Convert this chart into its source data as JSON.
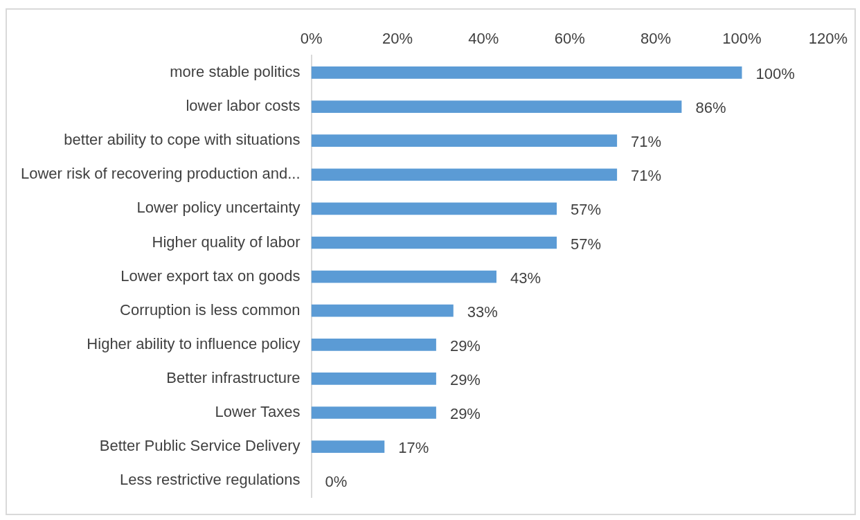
{
  "chart_data": {
    "type": "bar",
    "orientation": "horizontal",
    "categories": [
      "more stable politics",
      "lower labor costs",
      "better ability to cope with situations",
      "Lower risk of recovering production and...",
      "Lower policy uncertainty",
      "Higher quality of labor",
      "Lower export tax on goods",
      "Corruption is less common",
      "Higher ability to influence policy",
      "Better infrastructure",
      "Lower Taxes",
      "Better Public Service Delivery",
      "Less restrictive regulations"
    ],
    "values": [
      100,
      86,
      71,
      71,
      57,
      57,
      43,
      33,
      29,
      29,
      29,
      17,
      0
    ],
    "value_labels": [
      "100%",
      "86%",
      "71%",
      "71%",
      "57%",
      "57%",
      "43%",
      "33%",
      "29%",
      "29%",
      "29%",
      "17%",
      "0%"
    ],
    "color": "#5b9bd5",
    "xlim": [
      0,
      120
    ],
    "xticks": [
      {
        "value": 0,
        "label": "0%"
      },
      {
        "value": 20,
        "label": "20%"
      },
      {
        "value": 40,
        "label": "40%"
      },
      {
        "value": 60,
        "label": "60%"
      },
      {
        "value": 80,
        "label": "80%"
      },
      {
        "value": 100,
        "label": "100%"
      },
      {
        "value": 120,
        "label": "120%"
      }
    ],
    "grid": false
  }
}
